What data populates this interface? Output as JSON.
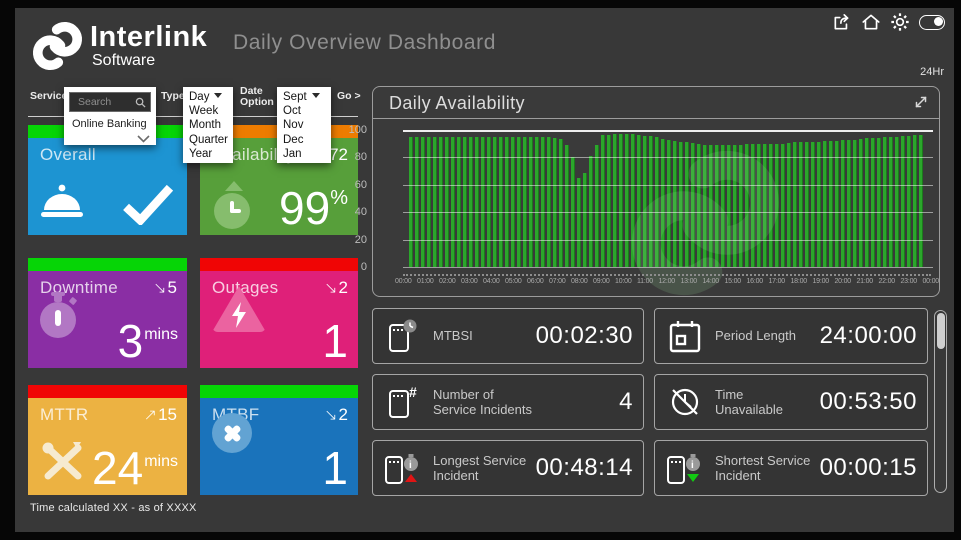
{
  "header": {
    "logo_name": "Interlink",
    "logo_sub": "Software",
    "title": "Daily Overview Dashboard",
    "duration_label": "24Hr",
    "top_icons": [
      "share",
      "home",
      "settings",
      "toggle-on"
    ]
  },
  "filters": {
    "service": {
      "label": "Service",
      "search_placeholder": "Search",
      "options": [
        "Online Banking"
      ]
    },
    "type": {
      "label": "Type",
      "selected": "Day",
      "options": [
        "Day",
        "Week",
        "Month",
        "Quarter",
        "Year"
      ]
    },
    "date": {
      "label": "Date Option",
      "selected": "Sept",
      "options": [
        "Sept",
        "Oct",
        "Nov",
        "Dec",
        "Jan"
      ]
    },
    "go_label": "Go >"
  },
  "tiles": [
    {
      "id": "overall",
      "label": "Overall",
      "trend_arrow": "",
      "trend_value": "",
      "value": "",
      "unit": "",
      "bg": "#1d94d2",
      "stripe": "#06d506",
      "icon": "cloche-icon"
    },
    {
      "id": "availability",
      "label": "Availability",
      "trend_arrow": "",
      "trend_value": "72",
      "value": "99",
      "unit": "%",
      "bg": "#579f3a",
      "stripe": "#ee7c00",
      "icon": "clock-up-icon"
    },
    {
      "id": "downtime",
      "label": "Downtime",
      "trend_arrow": "↘",
      "trend_value": "5",
      "value": "3",
      "unit": "mins",
      "bg": "#8a2ea4",
      "stripe": "#06d506",
      "icon": "stopwatch-icon"
    },
    {
      "id": "outages",
      "label": "Outages",
      "trend_arrow": "↘",
      "trend_value": "2",
      "value": "1",
      "unit": "",
      "bg": "#df2079",
      "stripe": "#f00505",
      "icon": "bolt-triangle-icon"
    },
    {
      "id": "mttr",
      "label": "MTTR",
      "trend_arrow": "↗",
      "trend_value": "15",
      "value": "24",
      "unit": "mins",
      "bg": "#ecb242",
      "stripe": "#f00505",
      "icon": "tools-icon"
    },
    {
      "id": "mtbf",
      "label": "MTBF",
      "trend_arrow": "↘",
      "trend_value": "2",
      "value": "1",
      "unit": "",
      "bg": "#1a73bb",
      "stripe": "#06d506",
      "icon": "circle-x-icon"
    }
  ],
  "footnote": "Time calculated XX - as of XXXX",
  "chart_data": {
    "type": "bar",
    "title": "Daily Availability",
    "interval_minutes": 30,
    "values": [
      95,
      95,
      95,
      95,
      95,
      95,
      95,
      95,
      95,
      95,
      95,
      95,
      95,
      95,
      94,
      87,
      60,
      82,
      96,
      97,
      97,
      97,
      96,
      95,
      93,
      92,
      91,
      90,
      89,
      89,
      89,
      89,
      90,
      90,
      90,
      90,
      91,
      91,
      91,
      92,
      92,
      93,
      93,
      94,
      94,
      95,
      95,
      96,
      96
    ],
    "tick_labels": [
      "00:00",
      "01:00",
      "02:00",
      "03:00",
      "04:00",
      "05:00",
      "06:00",
      "07:00",
      "08:00",
      "09:00",
      "10:00",
      "11:00",
      "12:00",
      "13:00",
      "14:00",
      "15:00",
      "16:00",
      "17:00",
      "18:00",
      "19:00",
      "20:00",
      "21:00",
      "22:00",
      "23:00",
      "00:00"
    ],
    "ylim": [
      0,
      100
    ],
    "yticks": [
      0,
      20,
      40,
      60,
      80,
      100
    ],
    "bar_color": "#2ba62b",
    "grid": true,
    "legend": "none"
  },
  "stats": [
    {
      "label": "MTBSI",
      "value": "00:02:30",
      "icon": "ticket-clock-icon"
    },
    {
      "label": "Period Length",
      "value": "24:00:00",
      "icon": "calendar-icon"
    },
    {
      "label": "Number of Service Incidents",
      "value": "4",
      "icon": "ticket-hash-icon"
    },
    {
      "label": "Time Unavailable",
      "value": "00:53:50",
      "icon": "clock-slash-icon"
    },
    {
      "label": "Longest Service Incident",
      "value": "00:48:14",
      "icon": "ticket-stopwatch-up-icon"
    },
    {
      "label": "Shortest Service Incident",
      "value": "00:00:15",
      "icon": "ticket-stopwatch-down-icon"
    }
  ]
}
